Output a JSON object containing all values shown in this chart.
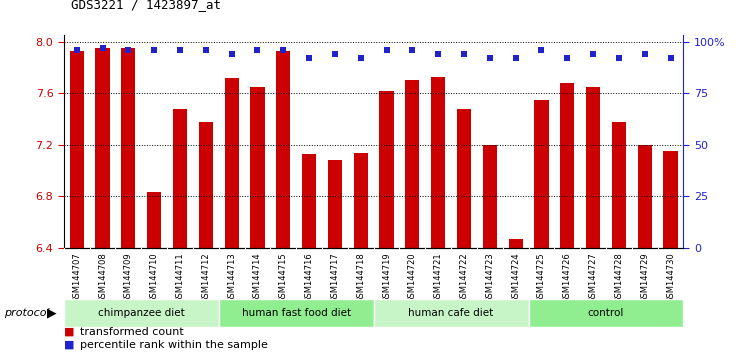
{
  "title": "GDS3221 / 1423897_at",
  "samples": [
    "GSM144707",
    "GSM144708",
    "GSM144709",
    "GSM144710",
    "GSM144711",
    "GSM144712",
    "GSM144713",
    "GSM144714",
    "GSM144715",
    "GSM144716",
    "GSM144717",
    "GSM144718",
    "GSM144719",
    "GSM144720",
    "GSM144721",
    "GSM144722",
    "GSM144723",
    "GSM144724",
    "GSM144725",
    "GSM144726",
    "GSM144727",
    "GSM144728",
    "GSM144729",
    "GSM144730"
  ],
  "red_values": [
    7.93,
    7.95,
    7.95,
    6.83,
    7.48,
    7.38,
    7.72,
    7.65,
    7.93,
    7.13,
    7.08,
    7.14,
    7.62,
    7.7,
    7.73,
    7.48,
    7.2,
    6.47,
    7.55,
    7.68,
    7.65,
    7.38,
    7.2,
    7.15
  ],
  "blue_pct": [
    96,
    97,
    96,
    96,
    96,
    96,
    94,
    96,
    96,
    92,
    94,
    92,
    96,
    96,
    94,
    94,
    92,
    92,
    96,
    92,
    94,
    92,
    94,
    92
  ],
  "groups": [
    {
      "label": "chimpanzee diet",
      "start": 0,
      "end": 6
    },
    {
      "label": "human fast food diet",
      "start": 6,
      "end": 12
    },
    {
      "label": "human cafe diet",
      "start": 12,
      "end": 18
    },
    {
      "label": "control",
      "start": 18,
      "end": 24
    }
  ],
  "group_colors": [
    "#c8f5c8",
    "#90ee90",
    "#c8f5c8",
    "#90ee90"
  ],
  "ylim_low": 6.4,
  "ylim_high": 8.0,
  "yticks": [
    6.4,
    6.8,
    7.2,
    7.6,
    8.0
  ],
  "right_pct_ticks": [
    0,
    25,
    50,
    75,
    100
  ],
  "right_pct_labels": [
    "0",
    "25",
    "50",
    "75",
    "100%"
  ],
  "bar_color": "#cc0000",
  "dot_color": "#2222cc",
  "tick_bg_color": "#c8c8c8",
  "legend_red_label": "transformed count",
  "legend_blue_label": "percentile rank within the sample",
  "left_tick_color": "#cc0000",
  "right_tick_color": "#2222cc",
  "title_font": "monospace",
  "title_fontsize": 9
}
